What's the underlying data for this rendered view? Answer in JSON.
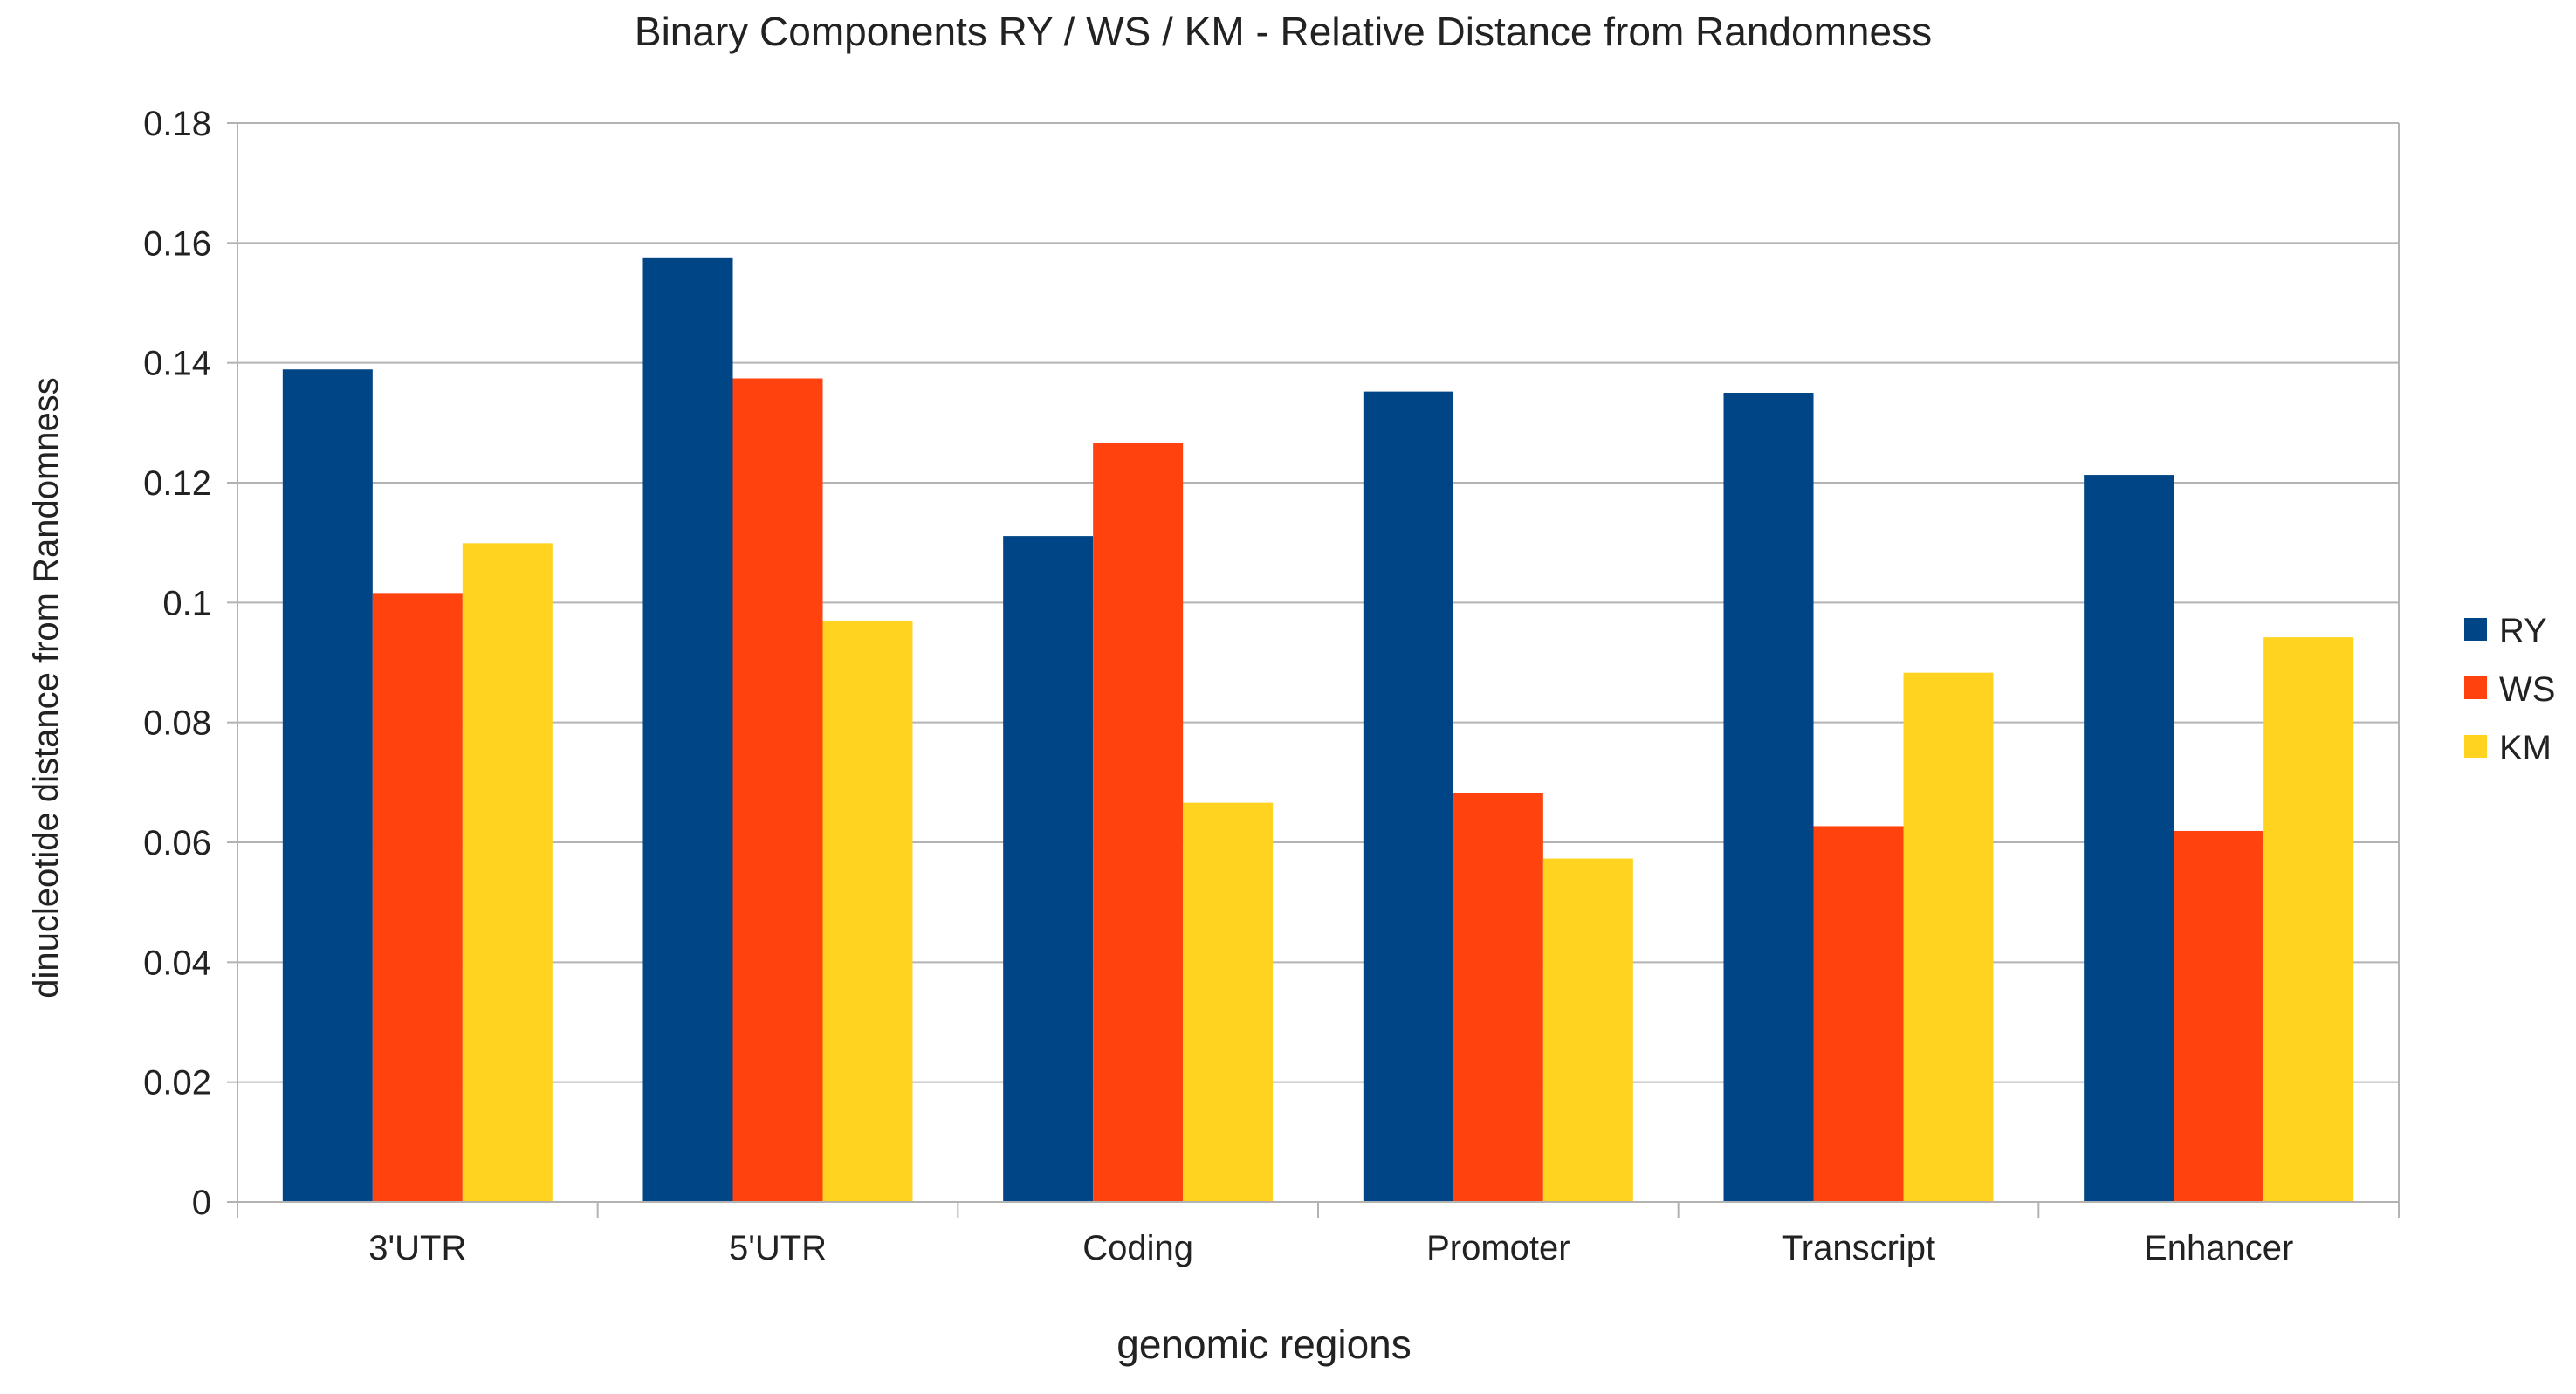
{
  "chart_data": {
    "type": "bar",
    "title": "Binary Components RY / WS / KM  - Relative Distance from Randomness",
    "xlabel": "genomic regions",
    "ylabel": "dinucleotide distance from Randomness",
    "categories": [
      "3'UTR",
      "5'UTR",
      "Coding",
      "Promoter",
      "Transcript",
      "Enhancer"
    ],
    "series": [
      {
        "name": "RY",
        "color": "#004586",
        "values": [
          0.1389,
          0.1576,
          0.1111,
          0.1352,
          0.135,
          0.1213
        ]
      },
      {
        "name": "WS",
        "color": "#ff420e",
        "values": [
          0.1016,
          0.1374,
          0.1266,
          0.0683,
          0.0627,
          0.0619
        ]
      },
      {
        "name": "KM",
        "color": "#ffd320",
        "values": [
          0.1099,
          0.097,
          0.0666,
          0.0573,
          0.0883,
          0.0942
        ]
      }
    ],
    "ylim": [
      0,
      0.18
    ],
    "yticks": [
      "0",
      "0.02",
      "0.04",
      "0.06",
      "0.08",
      "0.1",
      "0.12",
      "0.14",
      "0.16",
      "0.18"
    ],
    "ytick_values": [
      0,
      0.02,
      0.04,
      0.06,
      0.08,
      0.1,
      0.12,
      0.14,
      0.16,
      0.18
    ],
    "grid": true,
    "legend_position": "right"
  },
  "colors": {
    "grid": "#b3b3b3",
    "axis": "#b3b3b3",
    "text": "#222222",
    "background": "#ffffff"
  }
}
